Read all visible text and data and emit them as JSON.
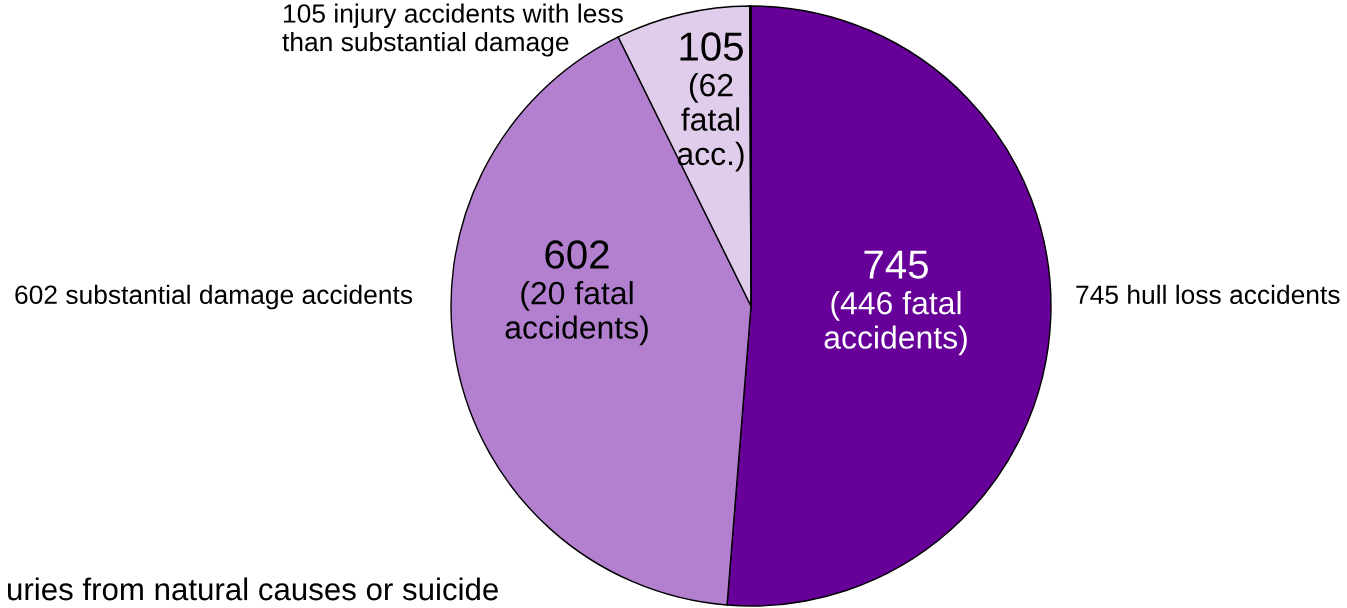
{
  "chart_data": {
    "type": "pie",
    "categories": [
      "745 hull loss accidents",
      "602 substantial damage accidents",
      "105 injury accidents with less\nthan substantial damage",
      null
    ],
    "values": [
      745,
      602,
      105,
      1
    ],
    "colors": [
      "#660099",
      "#b380d0",
      "#e0cceb",
      "#ffffff"
    ],
    "value_labels": [
      "745\n(446 fatal\naccidents)",
      "602\n(20 fatal\naccidents)",
      "105\n(62\nfatal\nacc.)",
      null
    ],
    "annotations": [
      "uries from natural causes or suicide"
    ]
  }
}
